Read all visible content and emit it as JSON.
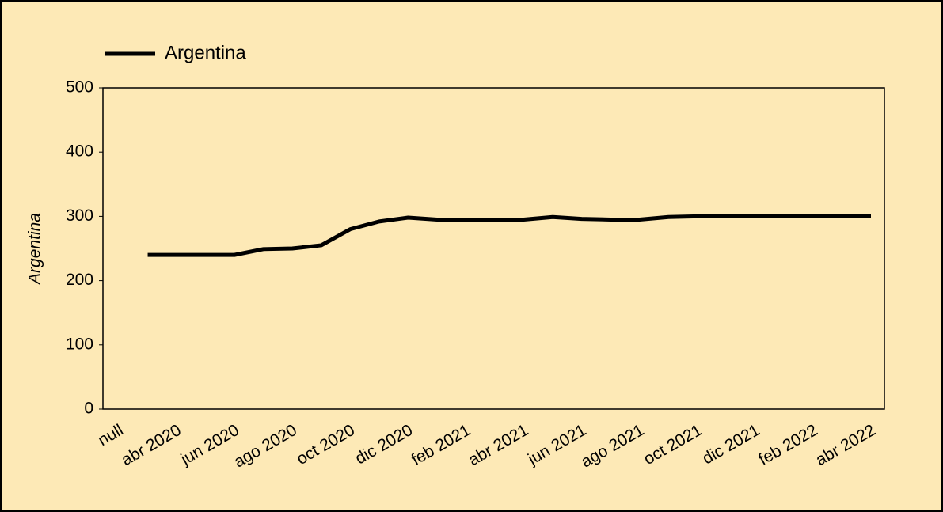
{
  "chart_data": {
    "type": "line",
    "y_axis_label": "Argentina",
    "categories": [
      "null",
      null,
      "abr 2020",
      null,
      "jun 2020",
      null,
      "ago 2020",
      null,
      "oct 2020",
      null,
      "dic 2020",
      null,
      "feb 2021",
      null,
      "abr 2021",
      null,
      "jun 2021",
      null,
      "ago 2021",
      null,
      "oct 2021",
      null,
      "dic 2021",
      null,
      "feb 2022",
      null,
      "abr 2022"
    ],
    "series": [
      {
        "name": "Argentina",
        "color": "#000000",
        "values": [
          null,
          240,
          240,
          240,
          240,
          249,
          250,
          255,
          280,
          292,
          298,
          295,
          295,
          295,
          295,
          299,
          296,
          295,
          295,
          299,
          300,
          300,
          300,
          300,
          300,
          300,
          300
        ]
      }
    ],
    "ylim": [
      0,
      500
    ],
    "yticks": [
      0,
      100,
      200,
      300,
      400,
      500
    ],
    "background": "#fde9b6",
    "legend": "top-left"
  }
}
